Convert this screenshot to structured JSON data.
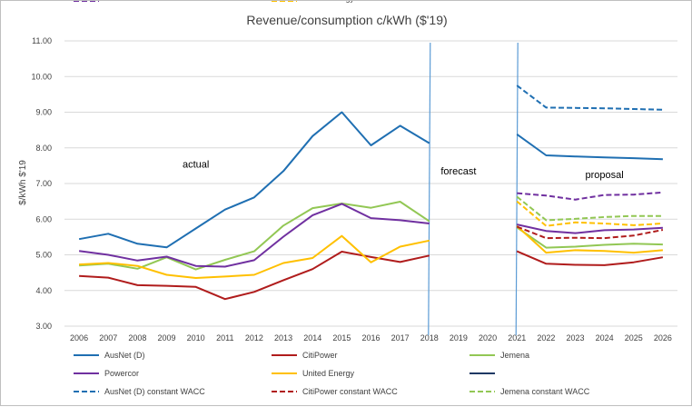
{
  "chart_data": {
    "type": "line",
    "title": "Revenue/consumption c/kWh ($'19)",
    "ylabel": "$/kWh $'19",
    "xlabel": "",
    "ylim": [
      3.0,
      11.0
    ],
    "yticks": [
      "3.00",
      "4.00",
      "5.00",
      "6.00",
      "7.00",
      "8.00",
      "9.00",
      "10.00",
      "11.00"
    ],
    "categories": [
      "2006",
      "2007",
      "2008",
      "2009",
      "2010",
      "2011",
      "2012",
      "2013",
      "2014",
      "2015",
      "2016",
      "2017",
      "2018",
      "2019",
      "2020",
      "2021",
      "2022",
      "2023",
      "2024",
      "2025",
      "2026"
    ],
    "grid": true,
    "legend_position": "bottom",
    "annotations": [
      {
        "text": "actual",
        "x": "2010",
        "y": 7.45
      },
      {
        "text": "forecast",
        "x": "2019",
        "y": 7.25
      },
      {
        "text": "proposal",
        "x": "2024",
        "y": 7.15
      }
    ],
    "divider_lines": [
      "2018",
      "2021"
    ],
    "series": [
      {
        "name": "AusNet (D)",
        "color": "#1f6fb2",
        "dash": false,
        "values": [
          5.44,
          5.59,
          5.31,
          5.21,
          5.74,
          6.27,
          6.61,
          7.35,
          8.33,
          9.0,
          8.07,
          8.62,
          8.13,
          null,
          null,
          8.38,
          7.79,
          7.76,
          7.73,
          7.71,
          7.68
        ]
      },
      {
        "name": "CitiPower",
        "color": "#b01c1c",
        "dash": false,
        "values": [
          4.41,
          4.36,
          4.15,
          4.13,
          4.1,
          3.76,
          3.96,
          4.29,
          4.6,
          5.09,
          4.94,
          4.8,
          4.98,
          null,
          null,
          5.1,
          4.75,
          4.72,
          4.71,
          4.79,
          4.93
        ]
      },
      {
        "name": "Jemena",
        "color": "#92c754",
        "dash": false,
        "values": [
          4.7,
          4.75,
          4.61,
          4.93,
          4.59,
          4.86,
          5.1,
          5.82,
          6.31,
          6.44,
          6.32,
          6.49,
          5.94,
          null,
          null,
          5.77,
          5.2,
          5.23,
          5.28,
          5.31,
          5.29
        ]
      },
      {
        "name": "Powercor",
        "color": "#7030a0",
        "dash": false,
        "values": [
          5.11,
          5.0,
          4.84,
          4.95,
          4.69,
          4.67,
          4.85,
          5.51,
          6.11,
          6.43,
          6.03,
          5.97,
          5.88,
          null,
          null,
          5.85,
          5.67,
          5.61,
          5.69,
          5.71,
          5.76
        ]
      },
      {
        "name": "United Energy",
        "color": "#ffc000",
        "dash": false,
        "values": [
          4.73,
          4.77,
          4.69,
          4.44,
          4.35,
          4.39,
          4.44,
          4.77,
          4.91,
          5.53,
          4.79,
          5.23,
          5.4,
          null,
          null,
          5.81,
          5.06,
          5.13,
          5.11,
          5.06,
          5.13
        ]
      },
      {
        "name": "",
        "color": "#1f3864",
        "dash": false,
        "values": [
          null,
          null,
          null,
          null,
          null,
          null,
          null,
          null,
          null,
          null,
          null,
          null,
          null,
          null,
          null,
          null,
          null,
          null,
          null,
          null,
          null
        ]
      },
      {
        "name": "AusNet (D) constant WACC",
        "color": "#1f6fb2",
        "dash": true,
        "values": [
          null,
          null,
          null,
          null,
          null,
          null,
          null,
          null,
          null,
          null,
          null,
          null,
          null,
          null,
          null,
          9.75,
          9.13,
          9.12,
          9.11,
          9.09,
          9.07
        ]
      },
      {
        "name": "CitiPower constant WACC",
        "color": "#b01c1c",
        "dash": true,
        "values": [
          null,
          null,
          null,
          null,
          null,
          null,
          null,
          null,
          null,
          null,
          null,
          null,
          null,
          null,
          null,
          5.79,
          5.47,
          5.48,
          5.47,
          5.54,
          5.7
        ]
      },
      {
        "name": "Jemena constant WACC",
        "color": "#92c754",
        "dash": true,
        "values": [
          null,
          null,
          null,
          null,
          null,
          null,
          null,
          null,
          null,
          null,
          null,
          null,
          null,
          null,
          null,
          6.63,
          5.97,
          6.01,
          6.06,
          6.09,
          6.09
        ]
      },
      {
        "name": "Powercor constant WACC",
        "color": "#7030a0",
        "dash": true,
        "values": [
          null,
          null,
          null,
          null,
          null,
          null,
          null,
          null,
          null,
          null,
          null,
          null,
          null,
          null,
          null,
          6.73,
          6.66,
          6.55,
          6.68,
          6.69,
          6.75
        ]
      },
      {
        "name": "United Energy constant WACC",
        "color": "#ffc000",
        "dash": true,
        "values": [
          null,
          null,
          null,
          null,
          null,
          null,
          null,
          null,
          null,
          null,
          null,
          null,
          null,
          null,
          null,
          6.5,
          5.81,
          5.91,
          5.88,
          5.83,
          5.88
        ]
      }
    ]
  }
}
